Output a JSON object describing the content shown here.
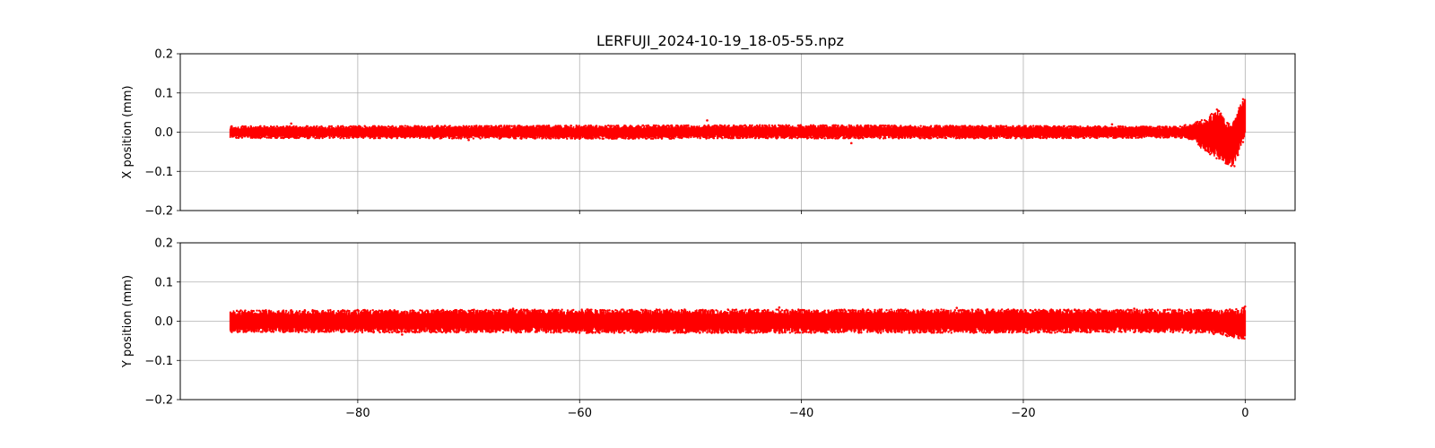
{
  "chart_data": {
    "type": "scatter",
    "title": "LERFUJI_2024-10-19_18-05-55.npz",
    "color": "#ff0000",
    "grid": true,
    "shared_x": true,
    "xlim": [
      -96,
      4.5
    ],
    "xticks": [
      -80,
      -60,
      -40,
      -20,
      0
    ],
    "xtick_labels": [
      "−80",
      "−60",
      "−40",
      "−20",
      "0"
    ],
    "panels": [
      {
        "id": "x",
        "ylabel": "X position (mm)",
        "ylim": [
          -0.2,
          0.2
        ],
        "yticks": [
          -0.2,
          -0.1,
          0.0,
          0.1,
          0.2
        ],
        "ytick_labels": [
          "−0.2",
          "−0.1",
          "0.0",
          "0.1",
          "0.2"
        ],
        "series": [
          {
            "x_range": [
              -91.5,
              0
            ],
            "band_points": [
              [
                -91.5,
                -0.015,
                0.015
              ],
              [
                -60,
                -0.017,
                0.017
              ],
              [
                -40,
                -0.016,
                0.018
              ],
              [
                -20,
                -0.016,
                0.016
              ],
              [
                -6,
                -0.014,
                0.014
              ],
              [
                -4.5,
                -0.02,
                0.025
              ],
              [
                -4,
                -0.045,
                0.03
              ],
              [
                -3.5,
                -0.05,
                0.035
              ],
              [
                -3,
                -0.06,
                0.05
              ],
              [
                -2.5,
                -0.07,
                0.06
              ],
              [
                -2,
                -0.075,
                0.04
              ],
              [
                -1.5,
                -0.09,
                0.02
              ],
              [
                -1,
                -0.09,
                0.03
              ],
              [
                -0.6,
                -0.06,
                0.06
              ],
              [
                -0.3,
                -0.03,
                0.08
              ],
              [
                0,
                -0.02,
                0.095
              ]
            ],
            "outliers": [
              [
                -48.5,
                0.03
              ],
              [
                -35.5,
                -0.028
              ],
              [
                -86,
                0.022
              ],
              [
                -12,
                0.02
              ],
              [
                -70,
                -0.02
              ]
            ]
          }
        ]
      },
      {
        "id": "y",
        "ylabel": "Y position (mm)",
        "ylim": [
          -0.2,
          0.2
        ],
        "yticks": [
          -0.2,
          -0.1,
          0.0,
          0.1,
          0.2
        ],
        "ytick_labels": [
          "−0.2",
          "−0.1",
          "0.0",
          "0.1",
          "0.2"
        ],
        "series": [
          {
            "x_range": [
              -91.5,
              0
            ],
            "band_points": [
              [
                -91.5,
                -0.028,
                0.028
              ],
              [
                -60,
                -0.03,
                0.03
              ],
              [
                -40,
                -0.03,
                0.03
              ],
              [
                -20,
                -0.03,
                0.03
              ],
              [
                -8,
                -0.028,
                0.03
              ],
              [
                -4,
                -0.03,
                0.03
              ],
              [
                -2,
                -0.035,
                0.03
              ],
              [
                -1,
                -0.045,
                0.03
              ],
              [
                -0.5,
                -0.048,
                0.035
              ],
              [
                0,
                -0.045,
                0.038
              ]
            ],
            "outliers": [
              [
                -42,
                0.035
              ],
              [
                -26,
                0.034
              ],
              [
                -76,
                -0.034
              ],
              [
                -10,
                0.032
              ],
              [
                -66,
                0.032
              ]
            ]
          }
        ]
      }
    ]
  }
}
